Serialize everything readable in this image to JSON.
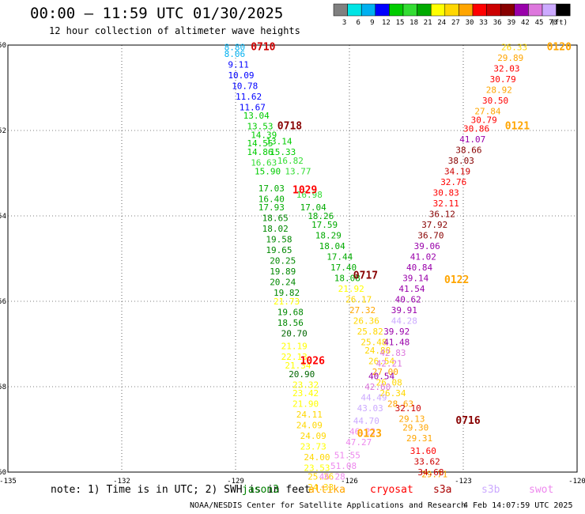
{
  "title": "00:00 – 11:59 UTC 01/30/2025",
  "subtitle": "12 hour collection of altimeter wave heights",
  "colorbar": {
    "labels": [
      "3",
      "6",
      "9",
      "12",
      "15",
      "18",
      "21",
      "24",
      "27",
      "30",
      "33",
      "36",
      "39",
      "42",
      "45",
      "70",
      "(ft)"
    ],
    "colors": [
      "#808080",
      "#00e5e5",
      "#00b0f0",
      "#0000ff",
      "#00cc00",
      "#33dd33",
      "#00aa00",
      "#ffff00",
      "#ffd700",
      "#ffa500",
      "#ff0000",
      "#cc0000",
      "#880000",
      "#9900aa",
      "#dd77dd",
      "#ccaaff",
      "#000000"
    ]
  },
  "axes": {
    "x_ticks": [
      "-135",
      "-132",
      "-129",
      "-126",
      "-123",
      "-120"
    ],
    "y_ticks": [
      "-50",
      "-52",
      "-54",
      "-56",
      "-58",
      "-60"
    ]
  },
  "note": "note: 1) Time is in UTC; 2) SWH is in feet",
  "satellites": [
    {
      "name": "jason3",
      "color": "#008000"
    },
    {
      "name": "altika",
      "color": "#ffa500"
    },
    {
      "name": "cryosat",
      "color": "#ff0000"
    },
    {
      "name": "s3a",
      "color": "#aa0000"
    },
    {
      "name": "s3b",
      "color": "#ccaaff"
    },
    {
      "name": "swot",
      "color": "#ee88ee"
    }
  ],
  "footer_left": "NOAA/NESDIS Center for Satellite Applications and Research",
  "footer_right": "4 Feb 14:07:59 UTC 2025",
  "map_data": {
    "lon_range": [
      -135,
      -120
    ],
    "lat_range": [
      -60,
      -50
    ],
    "pass_labels": [
      {
        "text": "0710",
        "lon": -128.6,
        "lat": -50.05,
        "color": "#cc0000"
      },
      {
        "text": "0718",
        "lon": -127.9,
        "lat": -51.9,
        "color": "#880000"
      },
      {
        "text": "1029",
        "lon": -127.5,
        "lat": -53.4,
        "color": "#ff0000"
      },
      {
        "text": "0717",
        "lon": -125.9,
        "lat": -55.4,
        "color": "#880000"
      },
      {
        "text": "1026",
        "lon": -127.3,
        "lat": -57.4,
        "color": "#ff0000"
      },
      {
        "text": "0120",
        "lon": -120.8,
        "lat": -50.05,
        "color": "#ffa500"
      },
      {
        "text": "0121",
        "lon": -121.9,
        "lat": -51.9,
        "color": "#ffa500"
      },
      {
        "text": "0122",
        "lon": -123.5,
        "lat": -55.5,
        "color": "#ffa500"
      },
      {
        "text": "0123",
        "lon": -125.8,
        "lat": -59.1,
        "color": "#ffa500"
      },
      {
        "text": "0716",
        "lon": -123.2,
        "lat": -58.8,
        "color": "#880000"
      }
    ],
    "tracks": [
      {
        "color_key": "jason3",
        "points": [
          {
            "v": "8.80",
            "lon": -129.3,
            "lat": -50.05,
            "c": "#00b0f0"
          },
          {
            "v": "8.06",
            "lon": -129.3,
            "lat": -50.2,
            "c": "#00b0f0"
          },
          {
            "v": "9.11",
            "lon": -129.2,
            "lat": -50.45,
            "c": "#0000ff"
          },
          {
            "v": "10.09",
            "lon": -129.2,
            "lat": -50.7,
            "c": "#0000ff"
          },
          {
            "v": "10.78",
            "lon": -129.1,
            "lat": -50.95,
            "c": "#0000ff"
          },
          {
            "v": "11.62",
            "lon": -129.0,
            "lat": -51.2,
            "c": "#0000ff"
          },
          {
            "v": "11.67",
            "lon": -128.9,
            "lat": -51.45,
            "c": "#0000ff"
          },
          {
            "v": "13.04",
            "lon": -128.8,
            "lat": -51.65,
            "c": "#00cc00"
          },
          {
            "v": "13.53",
            "lon": -128.7,
            "lat": -51.9,
            "c": "#00cc00"
          },
          {
            "v": "14.39",
            "lon": -128.6,
            "lat": -52.1,
            "c": "#00cc00"
          },
          {
            "v": "14.55",
            "lon": -128.7,
            "lat": -52.3,
            "c": "#00cc00"
          },
          {
            "v": "14.86",
            "lon": -128.7,
            "lat": -52.5,
            "c": "#00cc00"
          },
          {
            "v": "16.63",
            "lon": -128.6,
            "lat": -52.75,
            "c": "#33dd33"
          },
          {
            "v": "15.90",
            "lon": -128.5,
            "lat": -52.95,
            "c": "#00cc00"
          },
          {
            "v": "17.03",
            "lon": -128.4,
            "lat": -53.35,
            "c": "#00aa00"
          },
          {
            "v": "16.40",
            "lon": -128.4,
            "lat": -53.6,
            "c": "#00aa00"
          },
          {
            "v": "17.93",
            "lon": -128.4,
            "lat": -53.8,
            "c": "#00aa00"
          },
          {
            "v": "18.65",
            "lon": -128.3,
            "lat": -54.05,
            "c": "#008800"
          },
          {
            "v": "18.02",
            "lon": -128.3,
            "lat": -54.3,
            "c": "#008800"
          },
          {
            "v": "19.58",
            "lon": -128.2,
            "lat": -54.55,
            "c": "#008800"
          },
          {
            "v": "19.65",
            "lon": -128.2,
            "lat": -54.8,
            "c": "#008800"
          },
          {
            "v": "20.25",
            "lon": -128.1,
            "lat": -55.05,
            "c": "#008800"
          },
          {
            "v": "19.89",
            "lon": -128.1,
            "lat": -55.3,
            "c": "#008800"
          },
          {
            "v": "20.24",
            "lon": -128.1,
            "lat": -55.55,
            "c": "#008800"
          },
          {
            "v": "19.82",
            "lon": -128.0,
            "lat": -55.8,
            "c": "#008800"
          },
          {
            "v": "19.68",
            "lon": -127.9,
            "lat": -56.25,
            "c": "#008800"
          },
          {
            "v": "18.56",
            "lon": -127.9,
            "lat": -56.5,
            "c": "#008800"
          },
          {
            "v": "20.70",
            "lon": -127.8,
            "lat": -56.75,
            "c": "#006600"
          },
          {
            "v": "20.90",
            "lon": -127.6,
            "lat": -57.7,
            "c": "#006600"
          }
        ]
      },
      {
        "color_key": "jason3b",
        "points": [
          {
            "v": "13.14",
            "lon": -128.2,
            "lat": -52.25,
            "c": "#00cc00"
          },
          {
            "v": "15.33",
            "lon": -128.1,
            "lat": -52.5,
            "c": "#00cc00"
          },
          {
            "v": "16.82",
            "lon": -127.9,
            "lat": -52.7,
            "c": "#33dd33"
          },
          {
            "v": "13.77",
            "lon": -127.7,
            "lat": -52.95,
            "c": "#33dd33"
          },
          {
            "v": "16.98",
            "lon": -127.4,
            "lat": -53.5,
            "c": "#33dd33"
          },
          {
            "v": "17.04",
            "lon": -127.3,
            "lat": -53.8,
            "c": "#00aa00"
          },
          {
            "v": "18.26",
            "lon": -127.1,
            "lat": -54.0,
            "c": "#00aa00"
          },
          {
            "v": "17.59",
            "lon": -127.0,
            "lat": -54.2,
            "c": "#00aa00"
          },
          {
            "v": "18.29",
            "lon": -126.9,
            "lat": -54.45,
            "c": "#00aa00"
          },
          {
            "v": "18.04",
            "lon": -126.8,
            "lat": -54.7,
            "c": "#00aa00"
          },
          {
            "v": "17.44",
            "lon": -126.6,
            "lat": -54.95,
            "c": "#00aa00"
          },
          {
            "v": "17.40",
            "lon": -126.5,
            "lat": -55.2,
            "c": "#00aa00"
          },
          {
            "v": "18.08",
            "lon": -126.4,
            "lat": -55.45,
            "c": "#00aa00"
          }
        ]
      },
      {
        "color_key": "altika_sw",
        "points": [
          {
            "v": "21.92",
            "lon": -126.3,
            "lat": -55.7,
            "c": "#ffff00"
          },
          {
            "v": "26.17",
            "lon": -126.1,
            "lat": -55.95,
            "c": "#ffd700"
          },
          {
            "v": "27.32",
            "lon": -126.0,
            "lat": -56.2,
            "c": "#ffa500"
          },
          {
            "v": "26.36",
            "lon": -125.9,
            "lat": -56.45,
            "c": "#ffd700"
          },
          {
            "v": "25.82",
            "lon": -125.8,
            "lat": -56.7,
            "c": "#ffd700"
          },
          {
            "v": "25.48",
            "lon": -125.7,
            "lat": -56.95,
            "c": "#ffd700"
          },
          {
            "v": "24.88",
            "lon": -125.6,
            "lat": -57.15,
            "c": "#ffd700"
          },
          {
            "v": "26.54",
            "lon": -125.5,
            "lat": -57.4,
            "c": "#ffd700"
          },
          {
            "v": "27.00",
            "lon": -125.4,
            "lat": -57.65,
            "c": "#ffa500"
          },
          {
            "v": "26.08",
            "lon": -125.3,
            "lat": -57.9,
            "c": "#ffd700"
          },
          {
            "v": "26.34",
            "lon": -125.2,
            "lat": -58.15,
            "c": "#ffd700"
          },
          {
            "v": "28.63",
            "lon": -125.0,
            "lat": -58.4,
            "c": "#ffa500"
          },
          {
            "v": "29.13",
            "lon": -124.7,
            "lat": -58.75,
            "c": "#ffa500"
          },
          {
            "v": "29.30",
            "lon": -124.6,
            "lat": -58.95,
            "c": "#ffa500"
          },
          {
            "v": "29.31",
            "lon": -124.5,
            "lat": -59.2,
            "c": "#ffa500"
          },
          {
            "v": "29.71",
            "lon": -124.1,
            "lat": -60.05,
            "c": "#ffa500"
          }
        ]
      },
      {
        "color_key": "yellow",
        "points": [
          {
            "v": "21.73",
            "lon": -128.0,
            "lat": -56.0,
            "c": "#ffff00"
          },
          {
            "v": "21.19",
            "lon": -127.8,
            "lat": -57.05,
            "c": "#ffff00"
          },
          {
            "v": "22.13",
            "lon": -127.8,
            "lat": -57.3,
            "c": "#ffff00"
          },
          {
            "v": "21.34",
            "lon": -127.7,
            "lat": -57.5,
            "c": "#ffff00"
          },
          {
            "v": "23.32",
            "lon": -127.5,
            "lat": -57.95,
            "c": "#ffff00"
          },
          {
            "v": "23.42",
            "lon": -127.5,
            "lat": -58.15,
            "c": "#ffff00"
          },
          {
            "v": "21.90",
            "lon": -127.5,
            "lat": -58.4,
            "c": "#ffff00"
          },
          {
            "v": "24.11",
            "lon": -127.4,
            "lat": -58.65,
            "c": "#ffd700"
          },
          {
            "v": "24.09",
            "lon": -127.4,
            "lat": -58.9,
            "c": "#ffd700"
          },
          {
            "v": "24.09",
            "lon": -127.3,
            "lat": -59.15,
            "c": "#ffd700"
          },
          {
            "v": "23.73",
            "lon": -127.3,
            "lat": -59.4,
            "c": "#ffff00"
          },
          {
            "v": "24.00",
            "lon": -127.2,
            "lat": -59.65,
            "c": "#ffd700"
          },
          {
            "v": "23.53",
            "lon": -127.2,
            "lat": -59.9,
            "c": "#ffff00"
          },
          {
            "v": "25.36",
            "lon": -127.1,
            "lat": -60.1,
            "c": "#ffd700"
          },
          {
            "v": "24.33",
            "lon": -127.1,
            "lat": -60.35,
            "c": "#ffd700"
          }
        ]
      },
      {
        "color_key": "s3a",
        "points": [
          {
            "v": "26.33",
            "lon": -122.0,
            "lat": -50.05,
            "c": "#ffd700"
          },
          {
            "v": "29.89",
            "lon": -122.1,
            "lat": -50.3,
            "c": "#ffa500"
          },
          {
            "v": "32.03",
            "lon": -122.2,
            "lat": -50.55,
            "c": "#ff0000"
          },
          {
            "v": "30.79",
            "lon": -122.3,
            "lat": -50.8,
            "c": "#ff0000"
          },
          {
            "v": "28.92",
            "lon": -122.4,
            "lat": -51.05,
            "c": "#ffa500"
          },
          {
            "v": "30.50",
            "lon": -122.5,
            "lat": -51.3,
            "c": "#ff0000"
          },
          {
            "v": "27.84",
            "lon": -122.7,
            "lat": -51.55,
            "c": "#ffa500"
          },
          {
            "v": "30.79",
            "lon": -122.8,
            "lat": -51.75,
            "c": "#ff0000"
          },
          {
            "v": "30.86",
            "lon": -123.0,
            "lat": -51.95,
            "c": "#ff0000"
          },
          {
            "v": "41.07",
            "lon": -123.1,
            "lat": -52.2,
            "c": "#9900aa"
          },
          {
            "v": "38.66",
            "lon": -123.2,
            "lat": -52.45,
            "c": "#880000"
          },
          {
            "v": "38.03",
            "lon": -123.4,
            "lat": -52.7,
            "c": "#880000"
          },
          {
            "v": "34.19",
            "lon": -123.5,
            "lat": -52.95,
            "c": "#cc0000"
          },
          {
            "v": "32.76",
            "lon": -123.6,
            "lat": -53.2,
            "c": "#ff0000"
          },
          {
            "v": "30.83",
            "lon": -123.8,
            "lat": -53.45,
            "c": "#ff0000"
          },
          {
            "v": "32.11",
            "lon": -123.8,
            "lat": -53.7,
            "c": "#ff0000"
          },
          {
            "v": "36.12",
            "lon": -123.9,
            "lat": -53.95,
            "c": "#880000"
          },
          {
            "v": "37.92",
            "lon": -124.1,
            "lat": -54.2,
            "c": "#880000"
          },
          {
            "v": "36.70",
            "lon": -124.2,
            "lat": -54.45,
            "c": "#880000"
          },
          {
            "v": "39.06",
            "lon": -124.3,
            "lat": -54.7,
            "c": "#9900aa"
          },
          {
            "v": "41.02",
            "lon": -124.4,
            "lat": -54.95,
            "c": "#9900aa"
          },
          {
            "v": "40.84",
            "lon": -124.5,
            "lat": -55.2,
            "c": "#9900aa"
          },
          {
            "v": "39.14",
            "lon": -124.6,
            "lat": -55.45,
            "c": "#9900aa"
          },
          {
            "v": "41.54",
            "lon": -124.7,
            "lat": -55.7,
            "c": "#9900aa"
          },
          {
            "v": "40.62",
            "lon": -124.8,
            "lat": -55.95,
            "c": "#9900aa"
          },
          {
            "v": "39.91",
            "lon": -124.9,
            "lat": -56.2,
            "c": "#9900aa"
          },
          {
            "v": "44.28",
            "lon": -124.9,
            "lat": -56.45,
            "c": "#ccaaff"
          },
          {
            "v": "39.92",
            "lon": -125.1,
            "lat": -56.7,
            "c": "#9900aa"
          },
          {
            "v": "41.48",
            "lon": -125.1,
            "lat": -56.95,
            "c": "#9900aa"
          },
          {
            "v": "42.83",
            "lon": -125.2,
            "lat": -57.2,
            "c": "#dd77dd"
          },
          {
            "v": "42.21",
            "lon": -125.3,
            "lat": -57.45,
            "c": "#dd77dd"
          },
          {
            "v": "40.54",
            "lon": -125.5,
            "lat": -57.75,
            "c": "#9900aa"
          },
          {
            "v": "42.60",
            "lon": -125.6,
            "lat": -58.0,
            "c": "#dd77dd"
          },
          {
            "v": "44.49",
            "lon": -125.7,
            "lat": -58.25,
            "c": "#ccaaff"
          },
          {
            "v": "43.03",
            "lon": -125.8,
            "lat": -58.5,
            "c": "#ccaaff"
          },
          {
            "v": "44.70",
            "lon": -125.9,
            "lat": -58.8,
            "c": "#ccaaff"
          },
          {
            "v": "46.22",
            "lon": -126.0,
            "lat": -59.05,
            "c": "#ee88ee"
          },
          {
            "v": "47.27",
            "lon": -126.1,
            "lat": -59.3,
            "c": "#ee88ee"
          },
          {
            "v": "51.55",
            "lon": -126.4,
            "lat": -59.6,
            "c": "#ee88ee"
          },
          {
            "v": "51.08",
            "lon": -126.5,
            "lat": -59.85,
            "c": "#ee88ee"
          },
          {
            "v": "46.28",
            "lon": -126.8,
            "lat": -60.1,
            "c": "#ee88ee"
          }
        ]
      },
      {
        "color_key": "cryosat",
        "points": [
          {
            "v": "32.10",
            "lon": -124.8,
            "lat": -58.5,
            "c": "#cc0000"
          },
          {
            "v": "31.60",
            "lon": -124.4,
            "lat": -59.5,
            "c": "#ff0000"
          },
          {
            "v": "33.62",
            "lon": -124.3,
            "lat": -59.75,
            "c": "#cc0000"
          },
          {
            "v": "34.68",
            "lon": -124.2,
            "lat": -60.0,
            "c": "#cc0000"
          }
        ]
      }
    ]
  }
}
